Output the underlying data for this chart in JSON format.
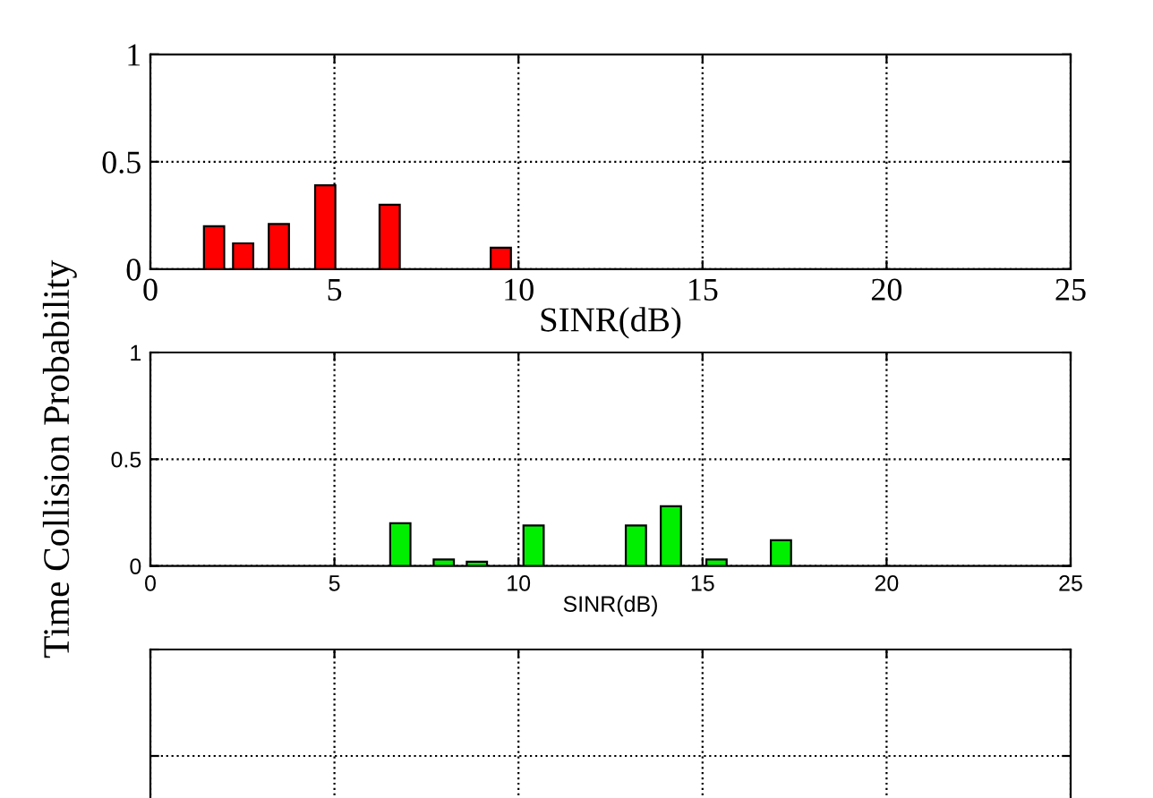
{
  "chart_data": [
    {
      "type": "bar",
      "x": [
        1.73,
        2.52,
        3.49,
        4.75,
        6.5,
        9.52
      ],
      "values": [
        0.2,
        0.12,
        0.21,
        0.39,
        0.3,
        0.1
      ],
      "color": "#ff0000",
      "xlim": [
        0,
        25
      ],
      "ylim": [
        0,
        1
      ],
      "xticks": [
        0,
        5,
        10,
        15,
        20,
        25
      ],
      "yticks": [
        0,
        0.5,
        1
      ],
      "xlabel": "SINR(dB)",
      "grid": true
    },
    {
      "type": "bar",
      "x": [
        6.79,
        7.97,
        8.87,
        10.41,
        13.19,
        14.14,
        15.38,
        17.13
      ],
      "values": [
        0.2,
        0.03,
        0.02,
        0.19,
        0.19,
        0.28,
        0.03,
        0.12
      ],
      "color": "#00ee00",
      "xlim": [
        0,
        25
      ],
      "ylim": [
        0,
        1
      ],
      "xticks": [
        0,
        5,
        10,
        15,
        20,
        25
      ],
      "yticks": [
        0,
        0.5,
        1
      ],
      "xlabel": "SINR(dB)",
      "ylabel": "Time Collision Probability",
      "grid": true
    },
    {
      "type": "other"
    }
  ]
}
